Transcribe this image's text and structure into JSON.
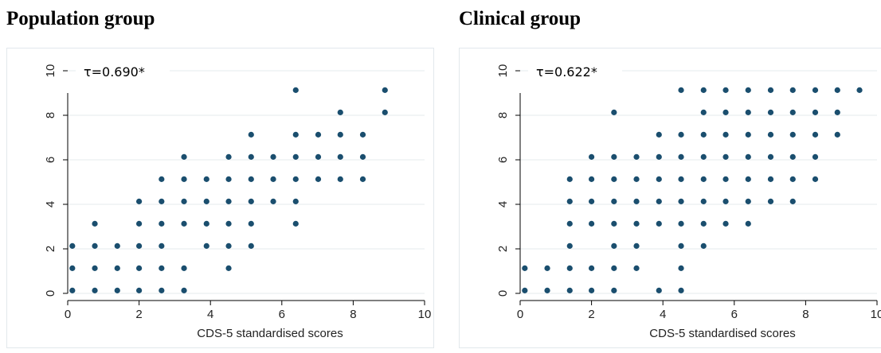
{
  "chart_data": [
    {
      "type": "scatter",
      "panel_title": "Population group",
      "annotation": "τ=0.690*",
      "xlabel": "CDS-5 standardised scores",
      "ylabel": "",
      "xlim": [
        0,
        10
      ],
      "ylim": [
        0,
        10
      ],
      "x_ticks": [
        "0",
        "2",
        "4",
        "6",
        "8",
        "10"
      ],
      "y_ticks": [
        "0",
        "2",
        "4",
        "6",
        "8",
        "10"
      ],
      "grid": "horizontal",
      "marker_color": "#1a4e6e",
      "points": [
        [
          0.13,
          0.13
        ],
        [
          0.76,
          0.13
        ],
        [
          1.39,
          0.13
        ],
        [
          2.0,
          0.13
        ],
        [
          2.63,
          0.13
        ],
        [
          3.26,
          0.13
        ],
        [
          0.13,
          1.13
        ],
        [
          0.76,
          1.13
        ],
        [
          1.39,
          1.13
        ],
        [
          2.0,
          1.13
        ],
        [
          2.63,
          1.13
        ],
        [
          3.26,
          1.13
        ],
        [
          4.51,
          1.13
        ],
        [
          0.13,
          2.13
        ],
        [
          0.76,
          2.13
        ],
        [
          1.39,
          2.13
        ],
        [
          2.0,
          2.13
        ],
        [
          2.63,
          2.13
        ],
        [
          3.89,
          2.13
        ],
        [
          4.51,
          2.13
        ],
        [
          5.14,
          2.13
        ],
        [
          0.76,
          3.13
        ],
        [
          2.0,
          3.13
        ],
        [
          2.63,
          3.13
        ],
        [
          3.26,
          3.13
        ],
        [
          3.89,
          3.13
        ],
        [
          4.51,
          3.13
        ],
        [
          5.14,
          3.13
        ],
        [
          6.39,
          3.13
        ],
        [
          2.0,
          4.13
        ],
        [
          2.63,
          4.13
        ],
        [
          3.26,
          4.13
        ],
        [
          3.89,
          4.13
        ],
        [
          4.51,
          4.13
        ],
        [
          5.14,
          4.13
        ],
        [
          5.76,
          4.13
        ],
        [
          6.39,
          4.13
        ],
        [
          2.63,
          5.13
        ],
        [
          3.26,
          5.13
        ],
        [
          3.89,
          5.13
        ],
        [
          4.51,
          5.13
        ],
        [
          5.14,
          5.13
        ],
        [
          5.76,
          5.13
        ],
        [
          6.39,
          5.13
        ],
        [
          7.02,
          5.13
        ],
        [
          7.64,
          5.13
        ],
        [
          8.27,
          5.13
        ],
        [
          3.26,
          6.13
        ],
        [
          4.51,
          6.13
        ],
        [
          5.14,
          6.13
        ],
        [
          5.76,
          6.13
        ],
        [
          6.39,
          6.13
        ],
        [
          7.02,
          6.13
        ],
        [
          7.64,
          6.13
        ],
        [
          8.27,
          6.13
        ],
        [
          5.14,
          7.13
        ],
        [
          6.39,
          7.13
        ],
        [
          7.02,
          7.13
        ],
        [
          7.64,
          7.13
        ],
        [
          8.27,
          7.13
        ],
        [
          7.64,
          8.13
        ],
        [
          8.89,
          8.13
        ],
        [
          6.39,
          9.13
        ],
        [
          8.89,
          9.13
        ]
      ]
    },
    {
      "type": "scatter",
      "panel_title": "Clinical group",
      "annotation": "τ=0.622*",
      "xlabel": "CDS-5 standardised scores",
      "ylabel": "",
      "xlim": [
        0,
        10
      ],
      "ylim": [
        0,
        10
      ],
      "x_ticks": [
        "0",
        "2",
        "4",
        "6",
        "8",
        "10"
      ],
      "y_ticks": [
        "0",
        "2",
        "4",
        "6",
        "8",
        "10"
      ],
      "grid": "horizontal",
      "marker_color": "#1a4e6e",
      "points": [
        [
          0.13,
          0.13
        ],
        [
          0.76,
          0.13
        ],
        [
          1.39,
          0.13
        ],
        [
          2.0,
          0.13
        ],
        [
          2.63,
          0.13
        ],
        [
          3.89,
          0.13
        ],
        [
          4.51,
          0.13
        ],
        [
          0.13,
          1.13
        ],
        [
          0.76,
          1.13
        ],
        [
          1.39,
          1.13
        ],
        [
          2.0,
          1.13
        ],
        [
          2.63,
          1.13
        ],
        [
          3.26,
          1.13
        ],
        [
          4.51,
          1.13
        ],
        [
          1.39,
          2.13
        ],
        [
          2.63,
          2.13
        ],
        [
          3.26,
          2.13
        ],
        [
          4.51,
          2.13
        ],
        [
          5.14,
          2.13
        ],
        [
          1.39,
          3.13
        ],
        [
          2.0,
          3.13
        ],
        [
          2.63,
          3.13
        ],
        [
          3.26,
          3.13
        ],
        [
          3.89,
          3.13
        ],
        [
          4.51,
          3.13
        ],
        [
          5.14,
          3.13
        ],
        [
          5.76,
          3.13
        ],
        [
          6.39,
          3.13
        ],
        [
          1.39,
          4.13
        ],
        [
          2.0,
          4.13
        ],
        [
          2.63,
          4.13
        ],
        [
          3.26,
          4.13
        ],
        [
          3.89,
          4.13
        ],
        [
          4.51,
          4.13
        ],
        [
          5.14,
          4.13
        ],
        [
          5.76,
          4.13
        ],
        [
          6.39,
          4.13
        ],
        [
          7.02,
          4.13
        ],
        [
          7.64,
          4.13
        ],
        [
          1.39,
          5.13
        ],
        [
          2.0,
          5.13
        ],
        [
          2.63,
          5.13
        ],
        [
          3.26,
          5.13
        ],
        [
          3.89,
          5.13
        ],
        [
          4.51,
          5.13
        ],
        [
          5.14,
          5.13
        ],
        [
          5.76,
          5.13
        ],
        [
          6.39,
          5.13
        ],
        [
          7.02,
          5.13
        ],
        [
          7.64,
          5.13
        ],
        [
          8.27,
          5.13
        ],
        [
          2.0,
          6.13
        ],
        [
          2.63,
          6.13
        ],
        [
          3.26,
          6.13
        ],
        [
          3.89,
          6.13
        ],
        [
          4.51,
          6.13
        ],
        [
          5.14,
          6.13
        ],
        [
          5.76,
          6.13
        ],
        [
          6.39,
          6.13
        ],
        [
          7.02,
          6.13
        ],
        [
          7.64,
          6.13
        ],
        [
          8.27,
          6.13
        ],
        [
          3.89,
          7.13
        ],
        [
          4.51,
          7.13
        ],
        [
          5.14,
          7.13
        ],
        [
          5.76,
          7.13
        ],
        [
          6.39,
          7.13
        ],
        [
          7.02,
          7.13
        ],
        [
          7.64,
          7.13
        ],
        [
          8.27,
          7.13
        ],
        [
          8.89,
          7.13
        ],
        [
          2.63,
          8.13
        ],
        [
          5.14,
          8.13
        ],
        [
          5.76,
          8.13
        ],
        [
          6.39,
          8.13
        ],
        [
          7.02,
          8.13
        ],
        [
          7.64,
          8.13
        ],
        [
          8.27,
          8.13
        ],
        [
          8.89,
          8.13
        ],
        [
          4.51,
          9.13
        ],
        [
          5.14,
          9.13
        ],
        [
          5.76,
          9.13
        ],
        [
          6.39,
          9.13
        ],
        [
          7.02,
          9.13
        ],
        [
          7.64,
          9.13
        ],
        [
          8.27,
          9.13
        ],
        [
          8.89,
          9.13
        ],
        [
          9.51,
          9.13
        ]
      ]
    }
  ]
}
